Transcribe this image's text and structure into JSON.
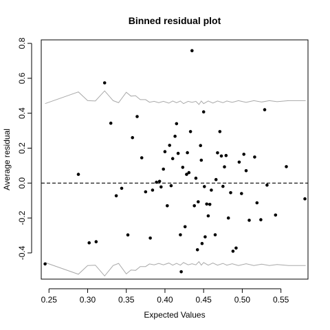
{
  "chart_data": {
    "type": "scatter",
    "title": "Binned residual plot",
    "xlabel": "Expected Values",
    "ylabel": "Average residual",
    "xlim": [
      0.24,
      0.585
    ],
    "ylim": [
      -0.55,
      0.82
    ],
    "x_ticks": [
      {
        "value": 0.25,
        "label": "0.25"
      },
      {
        "value": 0.3,
        "label": "0.30"
      },
      {
        "value": 0.35,
        "label": "0.35"
      },
      {
        "value": 0.4,
        "label": "0.40"
      },
      {
        "value": 0.45,
        "label": "0.45"
      },
      {
        "value": 0.5,
        "label": "0.50"
      },
      {
        "value": 0.55,
        "label": "0.55"
      }
    ],
    "y_ticks": [
      {
        "value": -0.4,
        "label": "-0.4"
      },
      {
        "value": -0.2,
        "label": "-0.2"
      },
      {
        "value": 0.0,
        "label": "0.0"
      },
      {
        "value": 0.2,
        "label": "0.2"
      },
      {
        "value": 0.4,
        "label": "0.4"
      },
      {
        "value": 0.6,
        "label": "0.6"
      },
      {
        "value": 0.8,
        "label": "0.8"
      }
    ],
    "reference_line": {
      "y": 0.0,
      "style": "dashed"
    },
    "upper_band": [
      [
        0.245,
        0.455
      ],
      [
        0.288,
        0.522
      ],
      [
        0.3,
        0.472
      ],
      [
        0.31,
        0.47
      ],
      [
        0.322,
        0.528
      ],
      [
        0.333,
        0.472
      ],
      [
        0.34,
        0.46
      ],
      [
        0.35,
        0.52
      ],
      [
        0.356,
        0.498
      ],
      [
        0.362,
        0.5
      ],
      [
        0.368,
        0.478
      ],
      [
        0.375,
        0.478
      ],
      [
        0.38,
        0.463
      ],
      [
        0.386,
        0.468
      ],
      [
        0.392,
        0.46
      ],
      [
        0.398,
        0.468
      ],
      [
        0.405,
        0.458
      ],
      [
        0.41,
        0.47
      ],
      [
        0.415,
        0.46
      ],
      [
        0.42,
        0.47
      ],
      [
        0.424,
        0.455
      ],
      [
        0.43,
        0.468
      ],
      [
        0.435,
        0.462
      ],
      [
        0.44,
        0.468
      ],
      [
        0.444,
        0.45
      ],
      [
        0.447,
        0.47
      ],
      [
        0.45,
        0.455
      ],
      [
        0.456,
        0.47
      ],
      [
        0.462,
        0.458
      ],
      [
        0.468,
        0.47
      ],
      [
        0.475,
        0.46
      ],
      [
        0.48,
        0.47
      ],
      [
        0.487,
        0.462
      ],
      [
        0.495,
        0.472
      ],
      [
        0.505,
        0.462
      ],
      [
        0.515,
        0.472
      ],
      [
        0.525,
        0.464
      ],
      [
        0.535,
        0.472
      ],
      [
        0.545,
        0.466
      ],
      [
        0.56,
        0.472
      ],
      [
        0.582,
        0.472
      ]
    ],
    "lower_band": [
      [
        0.245,
        -0.455
      ],
      [
        0.288,
        -0.522
      ],
      [
        0.3,
        -0.472
      ],
      [
        0.31,
        -0.47
      ],
      [
        0.322,
        -0.532
      ],
      [
        0.333,
        -0.472
      ],
      [
        0.34,
        -0.46
      ],
      [
        0.35,
        -0.52
      ],
      [
        0.356,
        -0.498
      ],
      [
        0.362,
        -0.5
      ],
      [
        0.368,
        -0.478
      ],
      [
        0.375,
        -0.478
      ],
      [
        0.38,
        -0.463
      ],
      [
        0.386,
        -0.468
      ],
      [
        0.392,
        -0.46
      ],
      [
        0.398,
        -0.468
      ],
      [
        0.405,
        -0.458
      ],
      [
        0.41,
        -0.47
      ],
      [
        0.415,
        -0.46
      ],
      [
        0.42,
        -0.47
      ],
      [
        0.424,
        -0.455
      ],
      [
        0.43,
        -0.468
      ],
      [
        0.435,
        -0.462
      ],
      [
        0.44,
        -0.468
      ],
      [
        0.444,
        -0.45
      ],
      [
        0.447,
        -0.47
      ],
      [
        0.45,
        -0.455
      ],
      [
        0.456,
        -0.47
      ],
      [
        0.462,
        -0.458
      ],
      [
        0.468,
        -0.47
      ],
      [
        0.475,
        -0.46
      ],
      [
        0.48,
        -0.47
      ],
      [
        0.487,
        -0.462
      ],
      [
        0.495,
        -0.472
      ],
      [
        0.505,
        -0.462
      ],
      [
        0.515,
        -0.472
      ],
      [
        0.525,
        -0.464
      ],
      [
        0.535,
        -0.472
      ],
      [
        0.545,
        -0.466
      ],
      [
        0.56,
        -0.472
      ],
      [
        0.582,
        -0.472
      ]
    ],
    "points": [
      [
        0.245,
        -0.463
      ],
      [
        0.288,
        0.05
      ],
      [
        0.302,
        -0.342
      ],
      [
        0.311,
        -0.336
      ],
      [
        0.322,
        0.574
      ],
      [
        0.33,
        0.343
      ],
      [
        0.337,
        -0.073
      ],
      [
        0.344,
        -0.03
      ],
      [
        0.352,
        -0.297
      ],
      [
        0.358,
        0.26
      ],
      [
        0.364,
        0.381
      ],
      [
        0.37,
        0.145
      ],
      [
        0.375,
        -0.05
      ],
      [
        0.381,
        -0.315
      ],
      [
        0.384,
        -0.04
      ],
      [
        0.389,
        0.005
      ],
      [
        0.393,
        0.01
      ],
      [
        0.395,
        -0.022
      ],
      [
        0.398,
        0.08
      ],
      [
        0.4,
        0.18
      ],
      [
        0.403,
        -0.13
      ],
      [
        0.406,
        0.216
      ],
      [
        0.408,
        -0.015
      ],
      [
        0.41,
        0.14
      ],
      [
        0.413,
        0.268
      ],
      [
        0.415,
        0.34
      ],
      [
        0.417,
        0.17
      ],
      [
        0.42,
        -0.296
      ],
      [
        0.421,
        -0.508
      ],
      [
        0.423,
        0.09
      ],
      [
        0.426,
        -0.25
      ],
      [
        0.428,
        0.05
      ],
      [
        0.429,
        0.174
      ],
      [
        0.431,
        0.06
      ],
      [
        0.433,
        0.295
      ],
      [
        0.435,
        0.758
      ],
      [
        0.438,
        -0.13
      ],
      [
        0.44,
        0.028
      ],
      [
        0.442,
        -0.382
      ],
      [
        0.443,
        -0.107
      ],
      [
        0.446,
        0.215
      ],
      [
        0.447,
        0.131
      ],
      [
        0.448,
        -0.346
      ],
      [
        0.45,
        0.408
      ],
      [
        0.451,
        -0.02
      ],
      [
        0.452,
        -0.308
      ],
      [
        0.454,
        -0.12
      ],
      [
        0.456,
        -0.188
      ],
      [
        0.458,
        -0.122
      ],
      [
        0.46,
        -0.04
      ],
      [
        0.465,
        -0.296
      ],
      [
        0.466,
        0.02
      ],
      [
        0.468,
        0.173
      ],
      [
        0.471,
        0.295
      ],
      [
        0.473,
        0.155
      ],
      [
        0.475,
        -0.019
      ],
      [
        0.477,
        0.093
      ],
      [
        0.479,
        0.158
      ],
      [
        0.482,
        -0.2
      ],
      [
        0.485,
        -0.055
      ],
      [
        0.488,
        -0.39
      ],
      [
        0.492,
        -0.372
      ],
      [
        0.496,
        0.12
      ],
      [
        0.499,
        -0.06
      ],
      [
        0.502,
        0.165
      ],
      [
        0.505,
        0.071
      ],
      [
        0.509,
        -0.213
      ],
      [
        0.516,
        0.149
      ],
      [
        0.519,
        -0.113
      ],
      [
        0.524,
        -0.21
      ],
      [
        0.529,
        0.42
      ],
      [
        0.532,
        -0.012
      ],
      [
        0.543,
        -0.183
      ],
      [
        0.557,
        0.094
      ],
      [
        0.581,
        -0.09
      ]
    ]
  }
}
